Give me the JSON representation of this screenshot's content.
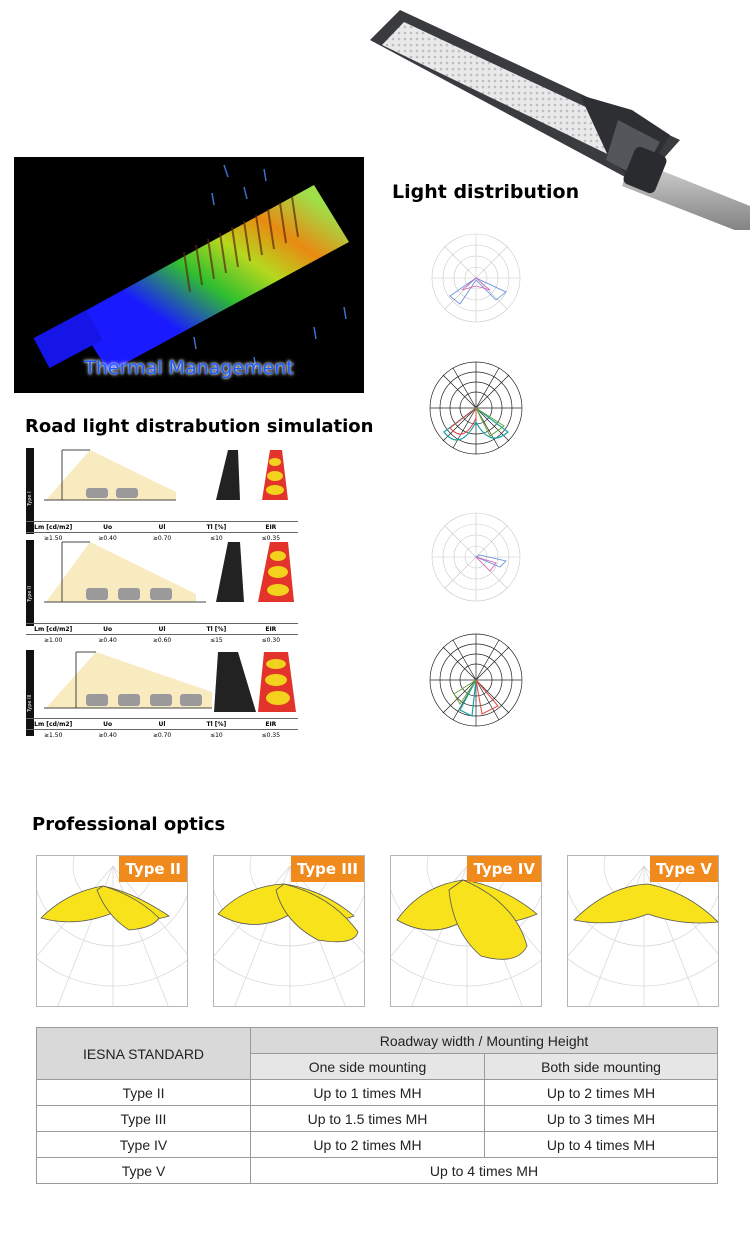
{
  "thermal": {
    "caption": "Thermal Management"
  },
  "light_distribution": {
    "heading": "Light distribution"
  },
  "road_simulation": {
    "heading": "Road light distrabution simulation",
    "headers": [
      "Lm [cd/m2]",
      "Uo",
      "Ul",
      "Tl [%]",
      "EIR"
    ],
    "panels": [
      {
        "type": "Type I",
        "values": [
          "≥1.50",
          "≥0.40",
          "≥0.70",
          "≤10",
          "≤0.35"
        ]
      },
      {
        "type": "Type II",
        "values": [
          "≥1.00",
          "≥0.40",
          "≥0.60",
          "≤15",
          "≤0.30"
        ]
      },
      {
        "type": "Type III",
        "values": [
          "≥1.50",
          "≥0.40",
          "≥0.70",
          "≤10",
          "≤0.35"
        ]
      }
    ]
  },
  "optics": {
    "heading": "Professional optics",
    "cards": [
      {
        "label": "Type II"
      },
      {
        "label": "Type III"
      },
      {
        "label": "Type IV"
      },
      {
        "label": "Type V"
      }
    ]
  },
  "iesna_table": {
    "standard_label": "IESNA STANDARD",
    "group_header": "Roadway width / Mounting Height",
    "col_one": "One side mounting",
    "col_both": "Both side mounting",
    "rows": [
      {
        "type": "Type II",
        "one": "Up to 1 times MH",
        "both": "Up to 2 times MH"
      },
      {
        "type": "Type III",
        "one": "Up to 1.5 times MH",
        "both": "Up to 3 times MH"
      },
      {
        "type": "Type IV",
        "one": "Up to 2 times MH",
        "both": "Up to 4 times MH"
      }
    ],
    "last_row": {
      "type": "Type V",
      "merged": "Up to 4 times MH"
    }
  },
  "colors": {
    "badge": "#f08a1c",
    "lobe": "#f7e21b",
    "table_header": "#d9d9d9"
  }
}
